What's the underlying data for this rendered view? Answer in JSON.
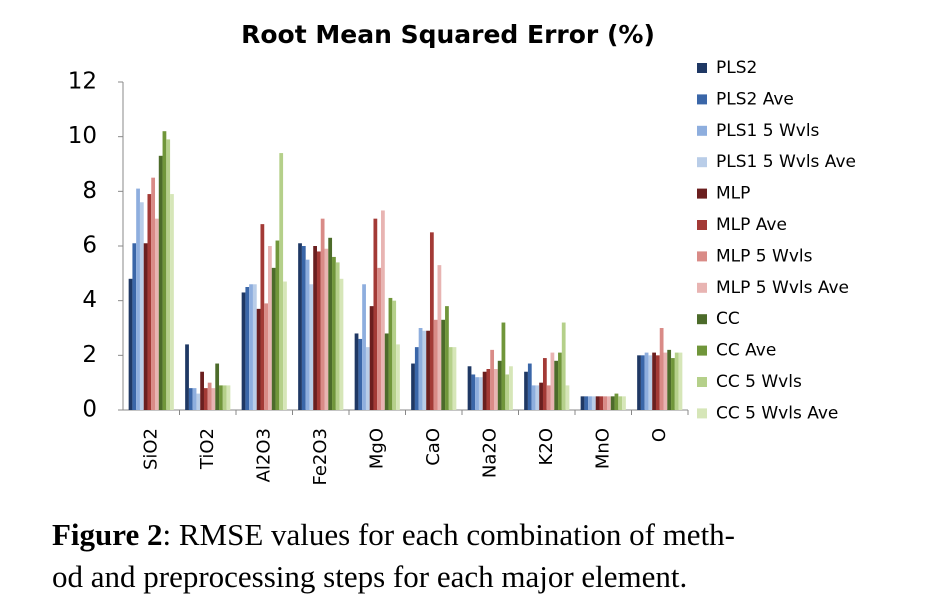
{
  "chart_data": {
    "type": "bar",
    "title": "Root Mean Squared Error (%)",
    "categories": [
      "SiO2",
      "TiO2",
      "Al2O3",
      "Fe2O3",
      "MgO",
      "CaO",
      "Na2O",
      "K2O",
      "MnO",
      "O"
    ],
    "series": [
      {
        "name": "PLS2",
        "color": "#1f3864",
        "values": [
          4.8,
          2.4,
          4.3,
          6.1,
          2.8,
          1.7,
          1.6,
          1.4,
          0.5,
          2.0
        ]
      },
      {
        "name": "PLS2 Ave",
        "color": "#3a66a8",
        "values": [
          6.1,
          0.8,
          4.5,
          6.0,
          2.6,
          2.3,
          1.3,
          1.7,
          0.5,
          2.0
        ]
      },
      {
        "name": "PLS1 5 Wvls",
        "color": "#8eaede",
        "values": [
          8.1,
          0.8,
          4.6,
          5.5,
          4.6,
          3.0,
          1.2,
          0.9,
          0.5,
          2.1
        ]
      },
      {
        "name": "PLS1 5 Wvls Ave",
        "color": "#b9cde8",
        "values": [
          7.6,
          0.6,
          4.6,
          4.6,
          2.3,
          2.9,
          1.2,
          0.9,
          0.5,
          2.0
        ]
      },
      {
        "name": "MLP",
        "color": "#6b1f1f",
        "values": [
          6.1,
          1.4,
          3.7,
          6.0,
          3.8,
          2.9,
          1.4,
          1.0,
          0.5,
          2.1
        ]
      },
      {
        "name": "MLP Ave",
        "color": "#a33a36",
        "values": [
          7.9,
          0.8,
          6.8,
          5.8,
          7.0,
          6.5,
          1.5,
          1.9,
          0.5,
          2.0
        ]
      },
      {
        "name": "MLP 5 Wvls",
        "color": "#d98b87",
        "values": [
          8.5,
          1.0,
          3.9,
          7.0,
          5.2,
          3.3,
          2.2,
          0.9,
          0.5,
          3.0
        ]
      },
      {
        "name": "MLP 5 Wvls Ave",
        "color": "#e8b4b2",
        "values": [
          7.0,
          0.8,
          6.0,
          5.9,
          7.3,
          5.3,
          1.5,
          2.1,
          0.5,
          2.1
        ]
      },
      {
        "name": "CC",
        "color": "#4c6b2a",
        "values": [
          9.3,
          1.7,
          5.2,
          6.3,
          2.8,
          3.3,
          1.8,
          1.8,
          0.5,
          2.2
        ]
      },
      {
        "name": "CC Ave",
        "color": "#70963a",
        "values": [
          10.2,
          0.9,
          6.2,
          5.6,
          4.1,
          3.8,
          3.2,
          2.1,
          0.6,
          1.9
        ]
      },
      {
        "name": "CC 5 Wvls",
        "color": "#b5d08a",
        "values": [
          9.9,
          0.9,
          9.4,
          5.4,
          4.0,
          2.3,
          1.3,
          3.2,
          0.5,
          2.1
        ]
      },
      {
        "name": "CC 5 Wvls Ave",
        "color": "#d6e6b8",
        "values": [
          7.9,
          0.9,
          4.7,
          4.8,
          2.4,
          2.3,
          1.6,
          0.9,
          0.5,
          2.1
        ]
      }
    ],
    "ylim": [
      0,
      12
    ],
    "yticks": [
      0,
      2,
      4,
      6,
      8,
      10,
      12
    ],
    "grid": false,
    "legend": "right"
  },
  "caption": {
    "label": "Figure 2",
    "lines": [
      ": RMSE values for each combination of meth-",
      "od and preprocessing steps for each major element."
    ]
  }
}
